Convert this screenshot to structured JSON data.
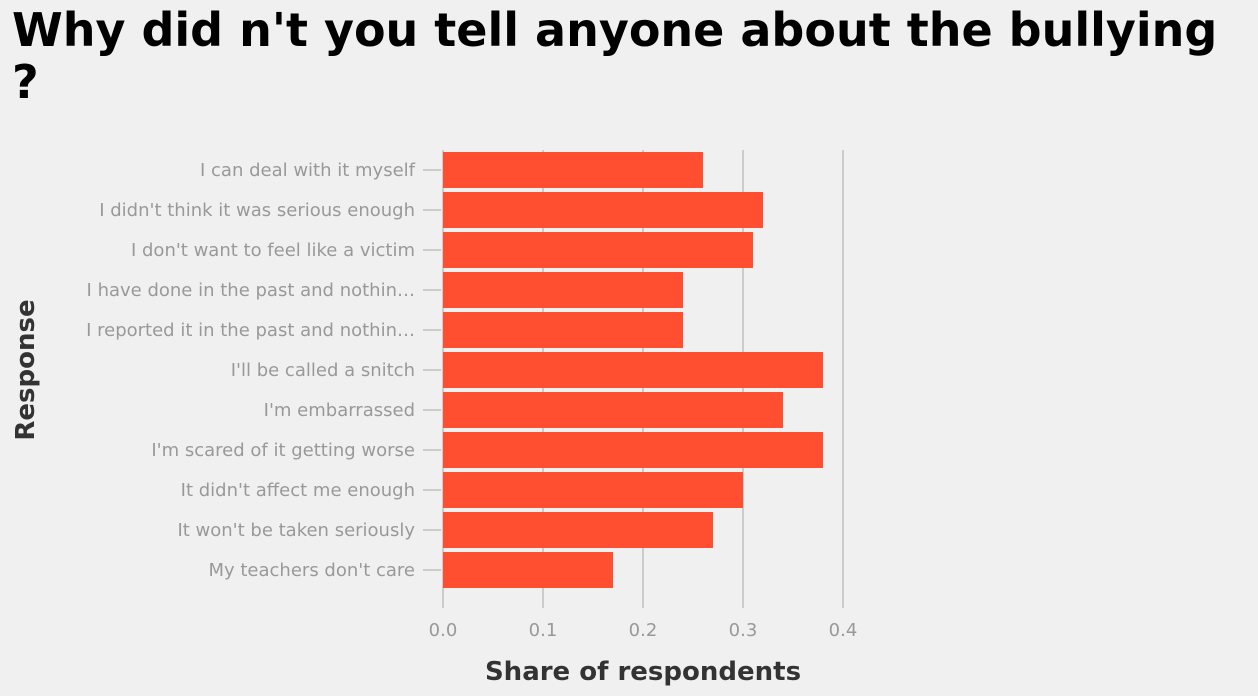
{
  "chart_data": {
    "type": "bar",
    "orientation": "horizontal",
    "title": "Why did n't you tell anyone about the bullying ?",
    "xlabel": "Share of respondents",
    "ylabel": "Response",
    "categories": [
      "I can deal with it myself",
      "I didn't think it was serious enough",
      "I don't want to feel like a victim",
      "I have done in the past and nothin…",
      "I reported it in the past and nothin…",
      "I'll be called a snitch",
      "I'm embarrassed",
      "I'm scared of it getting worse",
      "It didn't affect me enough",
      "It won't be taken seriously",
      "My teachers don't care"
    ],
    "values": [
      0.26,
      0.32,
      0.31,
      0.24,
      0.24,
      0.38,
      0.34,
      0.38,
      0.3,
      0.27,
      0.17
    ],
    "xticks": [
      "0.0",
      "0.1",
      "0.2",
      "0.3",
      "0.4"
    ],
    "xlim": [
      0,
      0.4
    ],
    "grid": true,
    "legend": "none",
    "colors": {
      "bar": "#ff4f30",
      "grid": "#cccccc",
      "background": "#f0f0f0"
    }
  }
}
